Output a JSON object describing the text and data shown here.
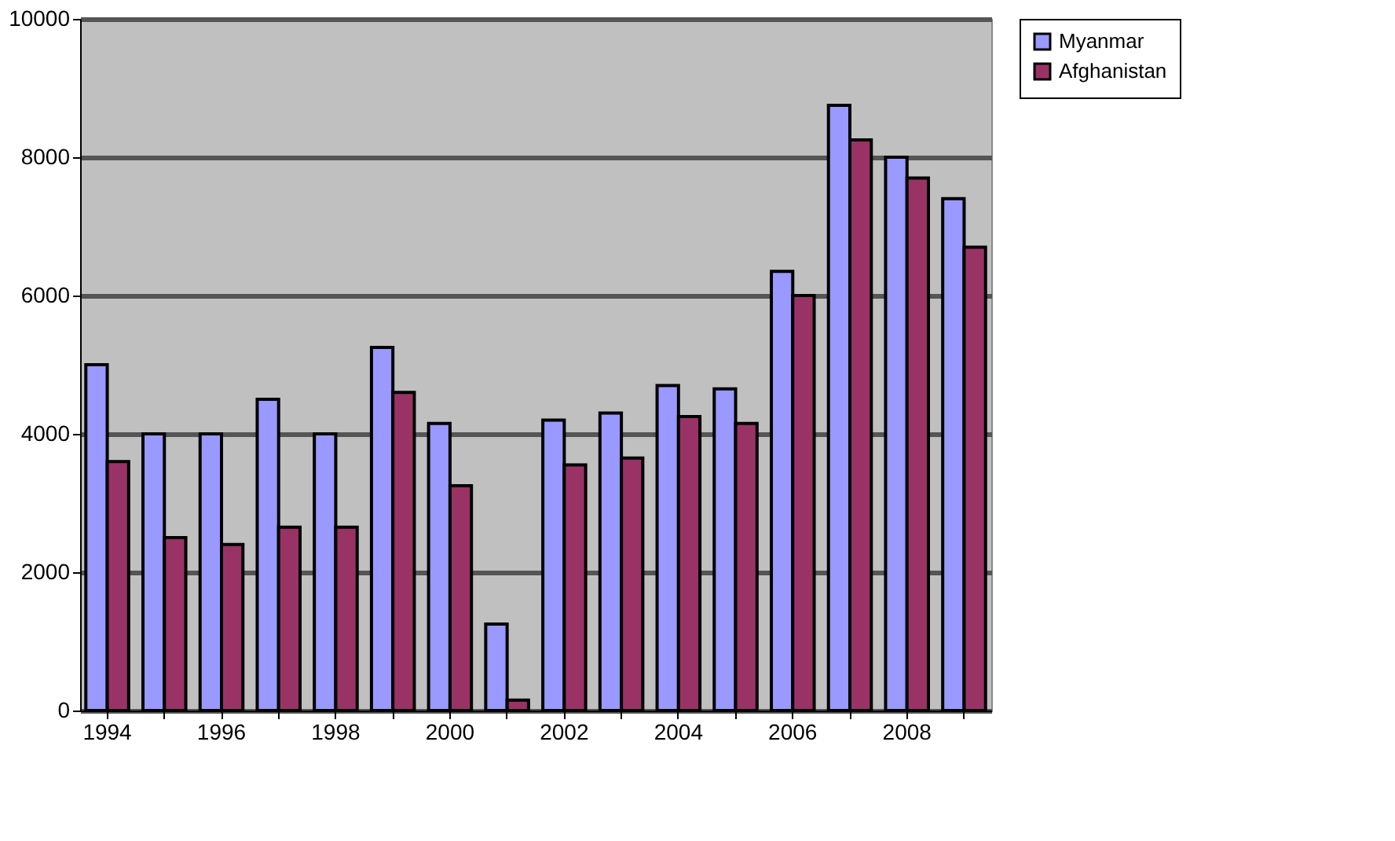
{
  "chart_data": {
    "type": "bar",
    "categories": [
      "1994",
      null,
      "1996",
      null,
      "1998",
      null,
      "2000",
      null,
      "2002",
      null,
      "2004",
      null,
      "2006",
      null,
      "2008",
      null
    ],
    "series": [
      {
        "name": "Myanmar",
        "color": "#9999ff",
        "values": [
          5000,
          4000,
          4000,
          4500,
          4000,
          5250,
          4150,
          1250,
          4200,
          4300,
          4700,
          4650,
          6350,
          8750,
          8000,
          7400
        ]
      },
      {
        "name": "Afghanistan",
        "color": "#993366",
        "values": [
          3600,
          2500,
          2400,
          2650,
          2650,
          4600,
          3250,
          150,
          3550,
          3650,
          4250,
          4150,
          6000,
          8250,
          7700,
          6700
        ]
      }
    ],
    "ylim": [
      0,
      10000
    ],
    "yticks": [
      0,
      2000,
      4000,
      6000,
      8000,
      10000
    ],
    "grid": "y",
    "legend": "right"
  }
}
